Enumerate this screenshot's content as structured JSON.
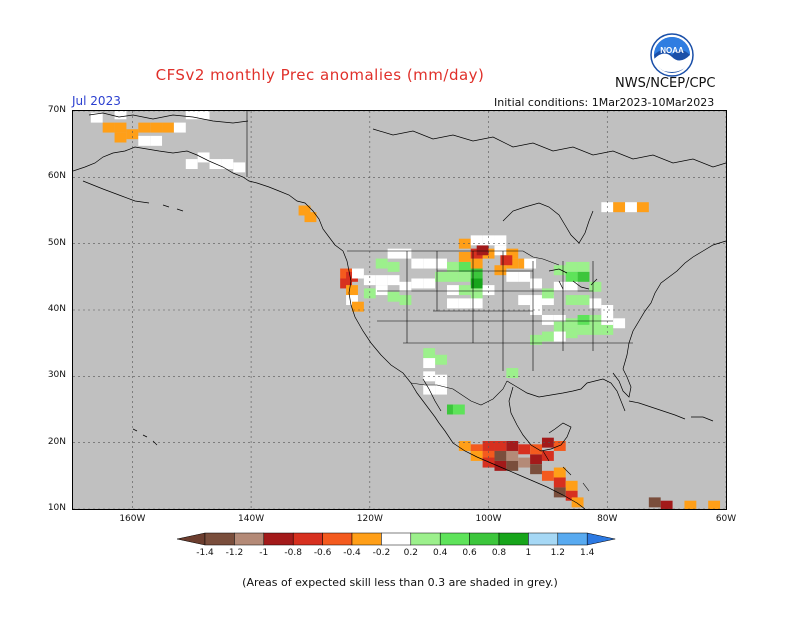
{
  "title": "CFSv2 monthly Prec anomalies (mm/day)",
  "agency": "NWS/NCEP/CPC",
  "logo_text": "NOAA",
  "month_label": "Jul 2023",
  "initial_conditions": "Initial conditions: 1Mar2023-10Mar2023",
  "footnote": "(Areas of expected skill less than 0.3 are shaded in grey.)",
  "colors": {
    "grey": "#c0c0c0",
    "white": "#ffffff",
    "title": "#e0302a",
    "month": "#2b3fd0"
  },
  "map": {
    "lon_range": [
      -170,
      -60
    ],
    "lat_range": [
      10,
      70
    ],
    "lat_labels": [
      {
        "value": 70,
        "label": "70N"
      },
      {
        "value": 60,
        "label": "60N"
      },
      {
        "value": 50,
        "label": "50N"
      },
      {
        "value": 40,
        "label": "40N"
      },
      {
        "value": 30,
        "label": "30N"
      },
      {
        "value": 20,
        "label": "20N"
      },
      {
        "value": 10,
        "label": "10N"
      }
    ],
    "lon_labels": [
      {
        "value": -160,
        "label": "160W"
      },
      {
        "value": -140,
        "label": "140W"
      },
      {
        "value": -120,
        "label": "120W"
      },
      {
        "value": -100,
        "label": "100W"
      },
      {
        "value": -80,
        "label": "80W"
      },
      {
        "value": -60,
        "label": "60W"
      }
    ]
  },
  "colorbar": {
    "bins": [
      {
        "color": "#7a4e3c"
      },
      {
        "color": "#b48a77"
      },
      {
        "color": "#a31a1a"
      },
      {
        "color": "#d7301f"
      },
      {
        "color": "#f45a1e"
      },
      {
        "color": "#ff9f18"
      },
      {
        "color": "#ffffff"
      },
      {
        "color": "#9cf08c"
      },
      {
        "color": "#5ee35a"
      },
      {
        "color": "#3cc63c"
      },
      {
        "color": "#17a51b"
      },
      {
        "color": "#a6d8f5"
      },
      {
        "color": "#58aaf0"
      }
    ],
    "low_end_color": "#6b3d2e",
    "high_end_color": "#2c79e2",
    "labels": [
      "-1.4",
      "-1.2",
      "-1",
      "-0.8",
      "-0.6",
      "-0.4",
      "-0.2",
      "0.2",
      "0.4",
      "0.6",
      "0.8",
      "1",
      "1.2",
      "1.4"
    ]
  },
  "anomaly_cells": [
    {
      "lon": -164,
      "lat": 67.5,
      "c": "#ff9f18"
    },
    {
      "lon": -162,
      "lat": 67.5,
      "c": "#ff9f18"
    },
    {
      "lon": -160,
      "lat": 66.5,
      "c": "#ff9f18"
    },
    {
      "lon": -158,
      "lat": 67.5,
      "c": "#ff9f18"
    },
    {
      "lon": -156,
      "lat": 67.5,
      "c": "#ff9f18"
    },
    {
      "lon": -162,
      "lat": 66.0,
      "c": "#ff9f18"
    },
    {
      "lon": -154,
      "lat": 67.5,
      "c": "#ff9f18"
    },
    {
      "lon": -166,
      "lat": 69.0,
      "c": "#ffffff"
    },
    {
      "lon": -162,
      "lat": 69.5,
      "c": "#ffffff"
    },
    {
      "lon": -150,
      "lat": 69.5,
      "c": "#ffffff"
    },
    {
      "lon": -148,
      "lat": 69.5,
      "c": "#ffffff"
    },
    {
      "lon": -152,
      "lat": 67.5,
      "c": "#ffffff"
    },
    {
      "lon": -158,
      "lat": 65.5,
      "c": "#ffffff"
    },
    {
      "lon": -156,
      "lat": 65.5,
      "c": "#ffffff"
    },
    {
      "lon": -148,
      "lat": 63.0,
      "c": "#ffffff"
    },
    {
      "lon": -146,
      "lat": 62.0,
      "c": "#ffffff"
    },
    {
      "lon": -144,
      "lat": 62.0,
      "c": "#ffffff"
    },
    {
      "lon": -142,
      "lat": 61.5,
      "c": "#ffffff"
    },
    {
      "lon": -150,
      "lat": 62.0,
      "c": "#ffffff"
    },
    {
      "lon": -131,
      "lat": 55.0,
      "c": "#ff9f18"
    },
    {
      "lon": -130,
      "lat": 54.0,
      "c": "#ff9f18"
    },
    {
      "lon": -124,
      "lat": 45.5,
      "c": "#f45a1e"
    },
    {
      "lon": -123,
      "lat": 45.0,
      "c": "#d7301f"
    },
    {
      "lon": -124,
      "lat": 44.0,
      "c": "#d7301f"
    },
    {
      "lon": -123,
      "lat": 43.0,
      "c": "#ff9f18"
    },
    {
      "lon": -122,
      "lat": 45.5,
      "c": "#ffffff"
    },
    {
      "lon": -120,
      "lat": 44.5,
      "c": "#ffffff"
    },
    {
      "lon": -118,
      "lat": 44.5,
      "c": "#ffffff"
    },
    {
      "lon": -116,
      "lat": 44.5,
      "c": "#ffffff"
    },
    {
      "lon": -120,
      "lat": 42.5,
      "c": "#9cf08c"
    },
    {
      "lon": -118,
      "lat": 43.0,
      "c": "#ffffff"
    },
    {
      "lon": -123,
      "lat": 41.5,
      "c": "#ffffff"
    },
    {
      "lon": -122,
      "lat": 40.5,
      "c": "#ff9f18"
    },
    {
      "lon": -114,
      "lat": 43.5,
      "c": "#ffffff"
    },
    {
      "lon": -112,
      "lat": 44.0,
      "c": "#ffffff"
    },
    {
      "lon": -110,
      "lat": 44.0,
      "c": "#ffffff"
    },
    {
      "lon": -114,
      "lat": 41.5,
      "c": "#9cf08c"
    },
    {
      "lon": -116,
      "lat": 42.0,
      "c": "#9cf08c"
    },
    {
      "lon": -112,
      "lat": 47.0,
      "c": "#ffffff"
    },
    {
      "lon": -110,
      "lat": 47.0,
      "c": "#ffffff"
    },
    {
      "lon": -108,
      "lat": 47.0,
      "c": "#ffffff"
    },
    {
      "lon": -114,
      "lat": 48.5,
      "c": "#ffffff"
    },
    {
      "lon": -116,
      "lat": 48.5,
      "c": "#ffffff"
    },
    {
      "lon": -118,
      "lat": 47.0,
      "c": "#9cf08c"
    },
    {
      "lon": -116,
      "lat": 46.5,
      "c": "#9cf08c"
    },
    {
      "lon": -108,
      "lat": 45.0,
      "c": "#9cf08c"
    },
    {
      "lon": -106,
      "lat": 45.0,
      "c": "#9cf08c"
    },
    {
      "lon": -104,
      "lat": 45.0,
      "c": "#9cf08c"
    },
    {
      "lon": -106,
      "lat": 46.5,
      "c": "#9cf08c"
    },
    {
      "lon": -104,
      "lat": 46.5,
      "c": "#5ee35a"
    },
    {
      "lon": -102,
      "lat": 44.0,
      "c": "#17a51b"
    },
    {
      "lon": -102,
      "lat": 45.5,
      "c": "#3cc63c"
    },
    {
      "lon": -104,
      "lat": 43.0,
      "c": "#9cf08c"
    },
    {
      "lon": -102,
      "lat": 42.5,
      "c": "#9cf08c"
    },
    {
      "lon": -106,
      "lat": 43.0,
      "c": "#ffffff"
    },
    {
      "lon": -100,
      "lat": 43.0,
      "c": "#ffffff"
    },
    {
      "lon": -106,
      "lat": 41.0,
      "c": "#ffffff"
    },
    {
      "lon": -104,
      "lat": 41.0,
      "c": "#ffffff"
    },
    {
      "lon": -102,
      "lat": 41.0,
      "c": "#ffffff"
    },
    {
      "lon": -104,
      "lat": 48.0,
      "c": "#ff9f18"
    },
    {
      "lon": -102,
      "lat": 47.0,
      "c": "#ff9f18"
    },
    {
      "lon": -100,
      "lat": 48.5,
      "c": "#ff9f18"
    },
    {
      "lon": -104,
      "lat": 50.0,
      "c": "#ff9f18"
    },
    {
      "lon": -102,
      "lat": 48.5,
      "c": "#d7301f"
    },
    {
      "lon": -101,
      "lat": 49.0,
      "c": "#a31a1a"
    },
    {
      "lon": -100,
      "lat": 50.5,
      "c": "#ffffff"
    },
    {
      "lon": -102,
      "lat": 50.5,
      "c": "#ffffff"
    },
    {
      "lon": -98,
      "lat": 50.5,
      "c": "#ffffff"
    },
    {
      "lon": -98,
      "lat": 49.0,
      "c": "#ffffff"
    },
    {
      "lon": -96,
      "lat": 48.5,
      "c": "#ff9f18"
    },
    {
      "lon": -94,
      "lat": 47.0,
      "c": "#ff9f18"
    },
    {
      "lon": -96,
      "lat": 47.0,
      "c": "#ff9f18"
    },
    {
      "lon": -98,
      "lat": 46.0,
      "c": "#ff9f18"
    },
    {
      "lon": -97,
      "lat": 47.5,
      "c": "#d7301f"
    },
    {
      "lon": -93,
      "lat": 47.0,
      "c": "#ffffff"
    },
    {
      "lon": -96,
      "lat": 45.0,
      "c": "#ffffff"
    },
    {
      "lon": -94,
      "lat": 45.0,
      "c": "#ffffff"
    },
    {
      "lon": -92,
      "lat": 44.0,
      "c": "#ffffff"
    },
    {
      "lon": -94,
      "lat": 41.5,
      "c": "#ffffff"
    },
    {
      "lon": -92,
      "lat": 41.5,
      "c": "#ffffff"
    },
    {
      "lon": -90,
      "lat": 41.5,
      "c": "#ffffff"
    },
    {
      "lon": -92,
      "lat": 40.0,
      "c": "#ffffff"
    },
    {
      "lon": -90,
      "lat": 38.5,
      "c": "#ffffff"
    },
    {
      "lon": -88,
      "lat": 38.5,
      "c": "#ffffff"
    },
    {
      "lon": -90,
      "lat": 42.5,
      "c": "#9cf08c"
    },
    {
      "lon": -88,
      "lat": 46.0,
      "c": "#9cf08c"
    },
    {
      "lon": -86,
      "lat": 46.5,
      "c": "#9cf08c"
    },
    {
      "lon": -84,
      "lat": 46.5,
      "c": "#9cf08c"
    },
    {
      "lon": -84,
      "lat": 45.0,
      "c": "#3cc63c"
    },
    {
      "lon": -86,
      "lat": 45.0,
      "c": "#5ee35a"
    },
    {
      "lon": -82,
      "lat": 43.5,
      "c": "#9cf08c"
    },
    {
      "lon": -86,
      "lat": 43.5,
      "c": "#ffffff"
    },
    {
      "lon": -88,
      "lat": 43.5,
      "c": "#ffffff"
    },
    {
      "lon": -86,
      "lat": 41.5,
      "c": "#9cf08c"
    },
    {
      "lon": -84,
      "lat": 41.5,
      "c": "#9cf08c"
    },
    {
      "lon": -82,
      "lat": 41.0,
      "c": "#ffffff"
    },
    {
      "lon": -80,
      "lat": 40.0,
      "c": "#ffffff"
    },
    {
      "lon": -88,
      "lat": 37.5,
      "c": "#9cf08c"
    },
    {
      "lon": -86,
      "lat": 38.0,
      "c": "#9cf08c"
    },
    {
      "lon": -84,
      "lat": 38.5,
      "c": "#5ee35a"
    },
    {
      "lon": -82,
      "lat": 38.5,
      "c": "#9cf08c"
    },
    {
      "lon": -84,
      "lat": 37.0,
      "c": "#9cf08c"
    },
    {
      "lon": -86,
      "lat": 36.5,
      "c": "#9cf08c"
    },
    {
      "lon": -82,
      "lat": 37.0,
      "c": "#9cf08c"
    },
    {
      "lon": -80,
      "lat": 37.0,
      "c": "#9cf08c"
    },
    {
      "lon": -80,
      "lat": 38.5,
      "c": "#ffffff"
    },
    {
      "lon": -78,
      "lat": 38.0,
      "c": "#ffffff"
    },
    {
      "lon": -90,
      "lat": 36.0,
      "c": "#9cf08c"
    },
    {
      "lon": -92,
      "lat": 35.5,
      "c": "#9cf08c"
    },
    {
      "lon": -88,
      "lat": 36.0,
      "c": "#ffffff"
    },
    {
      "lon": -110,
      "lat": 33.5,
      "c": "#9cf08c"
    },
    {
      "lon": -108,
      "lat": 32.5,
      "c": "#9cf08c"
    },
    {
      "lon": -110,
      "lat": 32.0,
      "c": "#ffffff"
    },
    {
      "lon": -110,
      "lat": 30.0,
      "c": "#ffffff"
    },
    {
      "lon": -108,
      "lat": 29.5,
      "c": "#ffffff"
    },
    {
      "lon": -110,
      "lat": 28.0,
      "c": "#ffffff"
    },
    {
      "lon": -108,
      "lat": 28.0,
      "c": "#ffffff"
    },
    {
      "lon": -96,
      "lat": 30.5,
      "c": "#9cf08c"
    },
    {
      "lon": -106,
      "lat": 25.0,
      "c": "#3cc63c"
    },
    {
      "lon": -105,
      "lat": 25.0,
      "c": "#5ee35a"
    },
    {
      "lon": -104,
      "lat": 19.5,
      "c": "#ff9f18"
    },
    {
      "lon": -102,
      "lat": 19.0,
      "c": "#f45a1e"
    },
    {
      "lon": -100,
      "lat": 19.5,
      "c": "#d7301f"
    },
    {
      "lon": -98,
      "lat": 19.5,
      "c": "#d7301f"
    },
    {
      "lon": -102,
      "lat": 18.0,
      "c": "#ff9f18"
    },
    {
      "lon": -100,
      "lat": 18.0,
      "c": "#f45a1e"
    },
    {
      "lon": -98,
      "lat": 18.0,
      "c": "#7a4e3c"
    },
    {
      "lon": -96,
      "lat": 18.0,
      "c": "#b48a77"
    },
    {
      "lon": -96,
      "lat": 19.5,
      "c": "#a31a1a"
    },
    {
      "lon": -94,
      "lat": 19.0,
      "c": "#d7301f"
    },
    {
      "lon": -100,
      "lat": 17.0,
      "c": "#d7301f"
    },
    {
      "lon": -98,
      "lat": 16.5,
      "c": "#a31a1a"
    },
    {
      "lon": -96,
      "lat": 16.5,
      "c": "#7a4e3c"
    },
    {
      "lon": -94,
      "lat": 17.0,
      "c": "#b48a77"
    },
    {
      "lon": -92,
      "lat": 17.5,
      "c": "#a31a1a"
    },
    {
      "lon": -92,
      "lat": 19.0,
      "c": "#f45a1e"
    },
    {
      "lon": -90,
      "lat": 18.0,
      "c": "#d7301f"
    },
    {
      "lon": -90,
      "lat": 20.0,
      "c": "#a31a1a"
    },
    {
      "lon": -88,
      "lat": 19.5,
      "c": "#f45a1e"
    },
    {
      "lon": -92,
      "lat": 16.0,
      "c": "#7a4e3c"
    },
    {
      "lon": -90,
      "lat": 15.0,
      "c": "#f45a1e"
    },
    {
      "lon": -88,
      "lat": 15.5,
      "c": "#ff9f18"
    },
    {
      "lon": -88,
      "lat": 14.0,
      "c": "#d7301f"
    },
    {
      "lon": -86,
      "lat": 13.5,
      "c": "#ff9f18"
    },
    {
      "lon": -88,
      "lat": 12.5,
      "c": "#7a4e3c"
    },
    {
      "lon": -86,
      "lat": 12.0,
      "c": "#d7301f"
    },
    {
      "lon": -85,
      "lat": 11.0,
      "c": "#ff9f18"
    },
    {
      "lon": -72,
      "lat": 11.0,
      "c": "#7a4e3c"
    },
    {
      "lon": -70,
      "lat": 10.5,
      "c": "#a31a1a"
    },
    {
      "lon": -66,
      "lat": 10.5,
      "c": "#ff9f18"
    },
    {
      "lon": -62,
      "lat": 10.5,
      "c": "#ff9f18"
    },
    {
      "lon": -80,
      "lat": 55.5,
      "c": "#ffffff"
    },
    {
      "lon": -78,
      "lat": 55.5,
      "c": "#ff9f18"
    },
    {
      "lon": -76,
      "lat": 55.5,
      "c": "#ffffff"
    },
    {
      "lon": -74,
      "lat": 55.5,
      "c": "#ff9f18"
    }
  ]
}
